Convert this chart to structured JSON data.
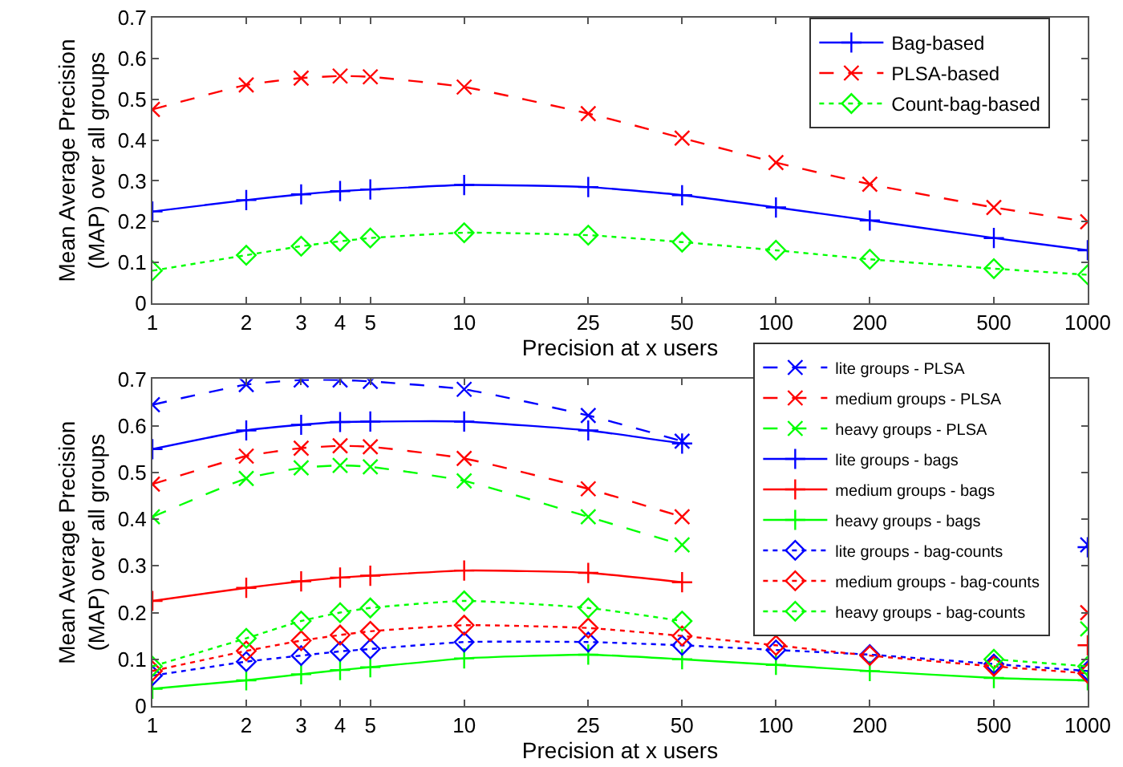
{
  "chart_data": [
    {
      "type": "line",
      "xlabel": "Precision at x users",
      "ylabel": "Mean Average Precision\n(MAP) over all groups",
      "x": [
        1,
        2,
        3,
        4,
        5,
        10,
        25,
        50,
        100,
        200,
        500,
        1000
      ],
      "log": "x",
      "xlim": [
        1,
        1000
      ],
      "xticks": [
        1,
        2,
        3,
        4,
        5,
        10,
        25,
        50,
        100,
        200,
        500,
        1000
      ],
      "ylim": [
        0,
        0.7
      ],
      "yticks": [
        0,
        0.1,
        0.2,
        0.3,
        0.4,
        0.5,
        0.6,
        0.7
      ],
      "grid": false,
      "legend": "top right",
      "series": [
        {
          "name": "Bag-based",
          "color": "#0000ff",
          "marker": "cross",
          "line_style": "solid",
          "values": [
            0.225,
            0.253,
            0.267,
            0.275,
            0.279,
            0.29,
            0.285,
            0.265,
            0.235,
            0.203,
            0.16,
            0.13
          ]
        },
        {
          "name": "PLSA-based",
          "color": "#ff0000",
          "marker": "x",
          "line_style": "dashed",
          "values": [
            0.475,
            0.535,
            0.552,
            0.557,
            0.555,
            0.53,
            0.465,
            0.405,
            0.345,
            0.292,
            0.235,
            0.2
          ]
        },
        {
          "name": "Count-bag-based",
          "color": "#00ff00",
          "marker": "diamond",
          "line_style": "dotted",
          "values": [
            0.08,
            0.118,
            0.14,
            0.152,
            0.16,
            0.173,
            0.167,
            0.15,
            0.13,
            0.108,
            0.085,
            0.07
          ]
        }
      ]
    },
    {
      "type": "line",
      "xlabel": "Precision at x users",
      "ylabel": "Mean Average Precision\n(MAP) over all groups",
      "x": [
        1,
        2,
        3,
        4,
        5,
        10,
        25,
        50,
        100,
        200,
        500,
        1000
      ],
      "log": "x",
      "xlim": [
        1,
        1000
      ],
      "xticks": [
        1,
        2,
        3,
        4,
        5,
        10,
        25,
        50,
        100,
        200,
        500,
        1000
      ],
      "ylim": [
        0,
        0.7
      ],
      "yticks": [
        0,
        0.1,
        0.2,
        0.3,
        0.4,
        0.5,
        0.6,
        0.7
      ],
      "grid": false,
      "legend": "top right",
      "series": [
        {
          "name": "lite groups - PLSA",
          "color": "#0000ff",
          "marker": "x",
          "line_style": "dashed",
          "values": [
            0.645,
            0.688,
            0.698,
            0.698,
            0.695,
            0.678,
            0.622,
            0.567,
            null,
            null,
            null,
            0.345
          ]
        },
        {
          "name": "medium groups - PLSA",
          "color": "#ff0000",
          "marker": "x",
          "line_style": "dashed",
          "values": [
            0.475,
            0.535,
            0.552,
            0.557,
            0.555,
            0.53,
            0.465,
            0.405,
            null,
            null,
            null,
            0.2
          ]
        },
        {
          "name": "heavy groups - PLSA",
          "color": "#00ff00",
          "marker": "x",
          "line_style": "dashed",
          "values": [
            0.405,
            0.487,
            0.51,
            0.515,
            0.512,
            0.482,
            0.405,
            0.345,
            null,
            null,
            null,
            0.165
          ]
        },
        {
          "name": "lite groups - bags",
          "color": "#0000ff",
          "marker": "cross",
          "line_style": "solid",
          "values": [
            0.55,
            0.59,
            0.602,
            0.608,
            0.609,
            0.609,
            0.59,
            0.562,
            null,
            null,
            null,
            0.34
          ]
        },
        {
          "name": "medium groups - bags",
          "color": "#ff0000",
          "marker": "cross",
          "line_style": "solid",
          "values": [
            0.225,
            0.253,
            0.267,
            0.275,
            0.279,
            0.29,
            0.285,
            0.265,
            null,
            null,
            null,
            0.13
          ]
        },
        {
          "name": "heavy groups - bags",
          "color": "#00ff00",
          "marker": "cross",
          "line_style": "solid",
          "values": [
            0.037,
            0.055,
            0.068,
            0.077,
            0.083,
            0.102,
            0.11,
            0.1,
            0.088,
            0.075,
            0.06,
            0.055
          ]
        },
        {
          "name": "lite groups - bag-counts",
          "color": "#0000ff",
          "marker": "diamond",
          "line_style": "dotted",
          "values": [
            0.065,
            0.095,
            0.108,
            0.117,
            0.122,
            0.137,
            0.137,
            0.13,
            0.12,
            0.11,
            0.09,
            0.075
          ]
        },
        {
          "name": "medium groups - bag-counts",
          "color": "#ff0000",
          "marker": "diamond",
          "line_style": "dotted",
          "values": [
            0.075,
            0.118,
            0.14,
            0.152,
            0.16,
            0.173,
            0.167,
            0.15,
            0.13,
            0.108,
            0.085,
            0.07
          ]
        },
        {
          "name": "heavy groups - bag-counts",
          "color": "#00ff00",
          "marker": "diamond",
          "line_style": "dotted",
          "values": [
            0.085,
            0.145,
            0.182,
            0.2,
            0.21,
            0.225,
            0.21,
            0.182,
            null,
            null,
            0.1,
            0.085
          ]
        }
      ]
    }
  ]
}
